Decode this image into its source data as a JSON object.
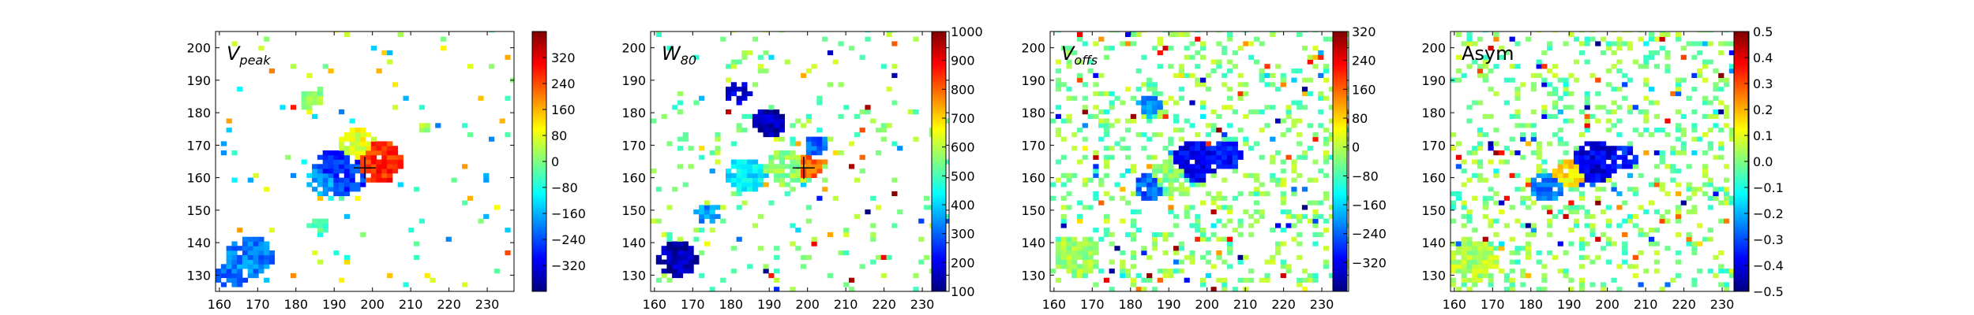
{
  "colors": {
    "jet": [
      "#00007f",
      "#0000ff",
      "#007fff",
      "#00ffff",
      "#7fff7f",
      "#ffff00",
      "#ff7f00",
      "#ff0000",
      "#7f0000"
    ],
    "axis": "#000000",
    "background": "#ffffff"
  },
  "chart_data": [
    {
      "type": "heatmap",
      "title": "V_peak",
      "title_main": "V",
      "title_sub": "peak",
      "xlim": [
        159,
        237
      ],
      "ylim": [
        125,
        205
      ],
      "xticks": [
        "160",
        "170",
        "180",
        "190",
        "200",
        "210",
        "220",
        "230"
      ],
      "yticks": [
        "130",
        "140",
        "150",
        "160",
        "170",
        "180",
        "190",
        "200"
      ],
      "colorbar": {
        "min": -400,
        "max": 400,
        "ticks": [
          "−320",
          "−240",
          "−160",
          "−80",
          "0",
          "80",
          "160",
          "240",
          "320"
        ]
      },
      "marker": {
        "x": 198,
        "y": 163,
        "shape": "plus"
      },
      "background_noise": "sparse",
      "blobs": [
        {
          "x": 192,
          "y": 162,
          "r": 7,
          "value": -260
        },
        {
          "x": 187,
          "y": 159,
          "r": 4,
          "value": -170
        },
        {
          "x": 201,
          "y": 165,
          "r": 6.5,
          "value": 270
        },
        {
          "x": 196,
          "y": 170,
          "r": 5,
          "value": 80
        },
        {
          "x": 184,
          "y": 184,
          "r": 3,
          "value": 30
        },
        {
          "x": 168,
          "y": 136,
          "r": 6,
          "value": -200
        },
        {
          "x": 163,
          "y": 130,
          "r": 4,
          "value": -210
        },
        {
          "x": 186,
          "y": 145,
          "r": 2.5,
          "value": -40
        },
        {
          "x": 214,
          "y": 175,
          "r": 1.5,
          "value": 40
        }
      ]
    },
    {
      "type": "heatmap",
      "title": "W_80",
      "title_main": "W",
      "title_sub": "80",
      "xlim": [
        159,
        237
      ],
      "ylim": [
        125,
        205
      ],
      "xticks": [
        "160",
        "170",
        "180",
        "190",
        "200",
        "210",
        "220",
        "230"
      ],
      "yticks": [
        "130",
        "140",
        "150",
        "160",
        "170",
        "180",
        "190",
        "200"
      ],
      "colorbar": {
        "min": 100,
        "max": 1000,
        "ticks": [
          "100",
          "200",
          "300",
          "400",
          "500",
          "600",
          "700",
          "800",
          "900",
          "1000"
        ]
      },
      "marker": {
        "x": 199,
        "y": 163,
        "shape": "plus"
      },
      "background_noise": "medium",
      "blobs": [
        {
          "x": 200,
          "y": 163,
          "r": 3.5,
          "value": 800
        },
        {
          "x": 194,
          "y": 163,
          "r": 5,
          "value": 560
        },
        {
          "x": 184,
          "y": 161,
          "r": 5,
          "value": 420
        },
        {
          "x": 202,
          "y": 170,
          "r": 3,
          "value": 300
        },
        {
          "x": 190,
          "y": 177,
          "r": 4,
          "value": 150
        },
        {
          "x": 182,
          "y": 186,
          "r": 3,
          "value": 180
        },
        {
          "x": 166,
          "y": 135,
          "r": 5,
          "value": 140
        },
        {
          "x": 174,
          "y": 149,
          "r": 3,
          "value": 350
        }
      ]
    },
    {
      "type": "heatmap",
      "title": "V_offs",
      "title_main": "V",
      "title_sub": "offs",
      "xlim": [
        159,
        237
      ],
      "ylim": [
        125,
        205
      ],
      "xticks": [
        "160",
        "170",
        "180",
        "190",
        "200",
        "210",
        "220",
        "230"
      ],
      "yticks": [
        "130",
        "140",
        "150",
        "160",
        "170",
        "180",
        "190",
        "200"
      ],
      "colorbar": {
        "min": -400,
        "max": 320,
        "ticks": [
          "−320",
          "−240",
          "−160",
          "−80",
          "0",
          "80",
          "160",
          "240",
          "320"
        ]
      },
      "marker": null,
      "background_noise": "dense",
      "blobs": [
        {
          "x": 197,
          "y": 165,
          "r": 6,
          "value": -320
        },
        {
          "x": 190,
          "y": 160,
          "r": 5,
          "value": -40
        },
        {
          "x": 185,
          "y": 157,
          "r": 4,
          "value": -240
        },
        {
          "x": 205,
          "y": 167,
          "r": 4,
          "value": -300
        },
        {
          "x": 185,
          "y": 182,
          "r": 3,
          "value": -200
        },
        {
          "x": 166,
          "y": 136,
          "r": 6,
          "value": -20
        }
      ]
    },
    {
      "type": "heatmap",
      "title": "Asym",
      "title_main": "Asym",
      "title_sub": "",
      "xlim": [
        159,
        237
      ],
      "ylim": [
        125,
        205
      ],
      "xticks": [
        "160",
        "170",
        "180",
        "190",
        "200",
        "210",
        "220",
        "230"
      ],
      "yticks": [
        "130",
        "140",
        "150",
        "160",
        "170",
        "180",
        "190",
        "200"
      ],
      "colorbar": {
        "min": -0.5,
        "max": 0.5,
        "ticks": [
          "−0.5",
          "−0.4",
          "−0.3",
          "−0.2",
          "−0.1",
          "0.0",
          "0.1",
          "0.2",
          "0.3",
          "0.4",
          "0.5"
        ]
      },
      "marker": null,
      "background_noise": "dense",
      "blobs": [
        {
          "x": 197,
          "y": 165,
          "r": 6,
          "value": -0.4
        },
        {
          "x": 190,
          "y": 161,
          "r": 4,
          "value": 0.15
        },
        {
          "x": 184,
          "y": 157,
          "r": 4,
          "value": -0.25
        },
        {
          "x": 204,
          "y": 166,
          "r": 3.5,
          "value": -0.35
        },
        {
          "x": 165,
          "y": 134,
          "r": 6,
          "value": 0.05
        }
      ]
    }
  ]
}
